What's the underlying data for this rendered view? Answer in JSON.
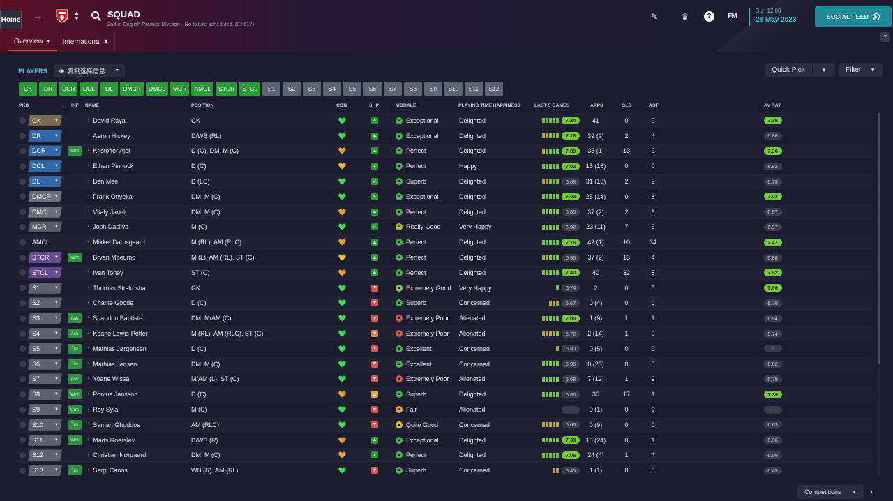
{
  "header": {
    "home_label": "Home",
    "title": "SQUAD",
    "subtitle": "2nd in English Premier Division - No fixture scheduled. (ID:617)",
    "tabs": [
      {
        "label": "Overview",
        "active": true
      },
      {
        "label": "International",
        "active": false
      }
    ],
    "fm_label": "FM",
    "date_time": "Sun 12:00",
    "date_day": "28 May 2023",
    "social_feed_label": "SOCIAL FEED",
    "notification_count": "7"
  },
  "toolbar": {
    "players_label": "PLAYERS",
    "view_select": "复制选择信息",
    "quick_pick_label": "Quick Pick",
    "filter_label": "Filter"
  },
  "position_buttons": [
    {
      "label": "GK",
      "kind": "g"
    },
    {
      "label": "DR",
      "kind": "g"
    },
    {
      "label": "DCR",
      "kind": "g"
    },
    {
      "label": "DCL",
      "kind": "g"
    },
    {
      "label": "DL",
      "kind": "g"
    },
    {
      "label": "DMCR",
      "kind": "g"
    },
    {
      "label": "DMCL",
      "kind": "g"
    },
    {
      "label": "MCR",
      "kind": "g"
    },
    {
      "label": "AMCL",
      "kind": "g"
    },
    {
      "label": "STCR",
      "kind": "g"
    },
    {
      "label": "STCL",
      "kind": "g"
    },
    {
      "label": "S1",
      "kind": "s"
    },
    {
      "label": "S2",
      "kind": "s"
    },
    {
      "label": "S3",
      "kind": "s"
    },
    {
      "label": "S4",
      "kind": "s"
    },
    {
      "label": "S5",
      "kind": "s"
    },
    {
      "label": "S6",
      "kind": "s"
    },
    {
      "label": "S7",
      "kind": "s"
    },
    {
      "label": "S8",
      "kind": "s"
    },
    {
      "label": "S9",
      "kind": "s"
    },
    {
      "label": "S10",
      "kind": "s"
    },
    {
      "label": "S11",
      "kind": "s"
    },
    {
      "label": "S12",
      "kind": "s"
    }
  ],
  "columns": {
    "pkd": "PKD",
    "sort_arrow": "▲",
    "inf": "INF",
    "name": "NAME",
    "position": "POSITION",
    "con": "CON",
    "shp": "SHP",
    "morale": "MORALE",
    "playing_time": "PLAYING TIME HAPPINESS",
    "last5": "LAST 5 GAMES",
    "apps": "APPS",
    "gls": "GLS",
    "ast": "AST",
    "av_rat": "AV RAT"
  },
  "players": [
    {
      "pkd": "GK",
      "pkd_style": "gk",
      "inf": "",
      "name": "David Raya",
      "position": "GK",
      "con": "green",
      "shp": "up",
      "morale": "Exceptional",
      "morale_color": "#4caf50",
      "pt": "Delighted",
      "form": [
        "#7bc043",
        "#7bc043",
        "#7bc043",
        "#7bc043",
        "#7bc043"
      ],
      "last5": "7.24",
      "last5_hi": true,
      "apps": "41",
      "gls": "0",
      "ast": "0",
      "avr": "7.10",
      "avr_hi": true
    },
    {
      "pkd": "DR",
      "pkd_style": "def",
      "inf": "",
      "name": "Aaron Hickey",
      "position": "D/WB (RL)",
      "con": "green",
      "shp": "up",
      "morale": "Exceptional",
      "morale_color": "#4caf50",
      "pt": "Delighted",
      "form": [
        "#d19a3c",
        "#b5a33c",
        "#7bc043",
        "#7bc043",
        "#7bc043"
      ],
      "last5": "7.18",
      "last5_hi": true,
      "apps": "39 (2)",
      "gls": "2",
      "ast": "4",
      "avr": "6.86",
      "avr_hi": false
    },
    {
      "pkd": "DCR",
      "pkd_style": "def",
      "inf": "Wnt",
      "name": "Kristoffer Ajer",
      "position": "D (C), DM, M (C)",
      "con": "orange",
      "shp": "up",
      "morale": "Perfect",
      "morale_color": "#4caf50",
      "pt": "Delighted",
      "form": [
        "#d19a3c",
        "#7bc043",
        "#4fd05e",
        "#7bc043",
        "#4fd05e"
      ],
      "last5": "7.80",
      "last5_hi": true,
      "apps": "33 (1)",
      "gls": "13",
      "ast": "2",
      "avr": "7.36",
      "avr_hi": true
    },
    {
      "pkd": "DCL",
      "pkd_style": "def",
      "inf": "",
      "name": "Ethan Pinnock",
      "position": "D (C)",
      "con": "yellow",
      "shp": "up",
      "morale": "Perfect",
      "morale_color": "#4caf50",
      "pt": "Happy",
      "form": [
        "#7bc043",
        "#7bc043",
        "#7bc043",
        "#7bc043",
        "#7bc043"
      ],
      "last5": "7.02",
      "last5_hi": true,
      "apps": "15 (16)",
      "gls": "0",
      "ast": "0",
      "avr": "6.82",
      "avr_hi": false
    },
    {
      "pkd": "DL",
      "pkd_style": "def",
      "inf": "",
      "name": "Ben Mee",
      "position": "D (LC)",
      "con": "green",
      "shp": "upgreen",
      "morale": "Superb",
      "morale_color": "#4caf50",
      "pt": "Delighted",
      "form": [
        "#b5a33c",
        "#b5a33c",
        "#7bc043",
        "#7bc043",
        "#7bc043"
      ],
      "last5": "6.88",
      "last5_hi": false,
      "apps": "31 (10)",
      "gls": "2",
      "ast": "2",
      "avr": "6.75",
      "avr_hi": false
    },
    {
      "pkd": "DMCR",
      "pkd_style": "dm",
      "inf": "",
      "name": "Frank Onyeka",
      "position": "DM, M (C)",
      "con": "green",
      "shp": "up",
      "morale": "Exceptional",
      "morale_color": "#4caf50",
      "pt": "Delighted",
      "form": [
        "#7bc043",
        "#7bc043",
        "#7bc043",
        "#7bc043",
        "#7bc043"
      ],
      "last5": "7.02",
      "last5_hi": true,
      "apps": "25 (14)",
      "gls": "0",
      "ast": "8",
      "avr": "7.03",
      "avr_hi": true
    },
    {
      "pkd": "DMCL",
      "pkd_style": "dm",
      "inf": "",
      "name": "Vitaly Janelt",
      "position": "DM, M (C)",
      "con": "orange",
      "shp": "up",
      "morale": "Perfect",
      "morale_color": "#4caf50",
      "pt": "Delighted",
      "form": [
        "#b5a33c",
        "#7bc043",
        "#7bc043",
        "#7bc043",
        "#7bc043"
      ],
      "last5": "6.80",
      "last5_hi": false,
      "apps": "37 (2)",
      "gls": "2",
      "ast": "6",
      "avr": "6.97",
      "avr_hi": false
    },
    {
      "pkd": "MCR",
      "pkd_style": "mid",
      "inf": "",
      "name": "Josh Dasilva",
      "position": "M (C)",
      "con": "green",
      "shp": "upgreen",
      "morale": "Really Good",
      "morale_color": "#b5c230",
      "pt": "Very Happy",
      "form": [
        "#7bc043",
        "#7bc043",
        "#7bc043",
        "#7bc043",
        "#7bc043"
      ],
      "last5": "6.92",
      "last5_hi": false,
      "apps": "23 (11)",
      "gls": "7",
      "ast": "3",
      "avr": "6.97",
      "avr_hi": false
    },
    {
      "pkd": "AMCL",
      "pkd_style": "plain",
      "inf": "",
      "name": "Mikkel Damsgaard",
      "position": "M (RL), AM (RLC)",
      "con": "orange",
      "shp": "up",
      "morale": "Perfect",
      "morale_color": "#4caf50",
      "pt": "Delighted",
      "form": [
        "#7bc043",
        "#4fd05e",
        "#4fd05e",
        "#7bc043",
        "#4fd05e"
      ],
      "last5": "7.76",
      "last5_hi": true,
      "apps": "42 (1)",
      "gls": "10",
      "ast": "34",
      "avr": "7.47",
      "avr_hi": true
    },
    {
      "pkd": "STCR",
      "pkd_style": "att",
      "inf": "Wnt",
      "name": "Bryan Mbeumo",
      "position": "M (L), AM (RL), ST (C)",
      "con": "yellow",
      "shp": "up",
      "morale": "Perfect",
      "morale_color": "#4caf50",
      "pt": "Delighted",
      "form": [
        "#7bc043",
        "#b5a33c",
        "#7bc043",
        "#7bc043",
        "#7bc043"
      ],
      "last5": "6.96",
      "last5_hi": false,
      "apps": "37 (2)",
      "gls": "13",
      "ast": "4",
      "avr": "6.88",
      "avr_hi": false
    },
    {
      "pkd": "STCL",
      "pkd_style": "att",
      "inf": "",
      "name": "Ivan Toney",
      "position": "ST (C)",
      "con": "orange",
      "shp": "up",
      "morale": "Perfect",
      "morale_color": "#4caf50",
      "pt": "Delighted",
      "form": [
        "#4fd05e",
        "#b5a33c",
        "#7bc043",
        "#4fd05e",
        "#7bc043"
      ],
      "last5": "7.40",
      "last5_hi": true,
      "apps": "40",
      "gls": "32",
      "ast": "8",
      "avr": "7.52",
      "avr_hi": true
    },
    {
      "pkd": "S1",
      "pkd_style": "sub",
      "inf": "",
      "name": "Thomas Strakosha",
      "position": "GK",
      "con": "green",
      "shp": "down",
      "morale": "Extremely Good",
      "morale_color": "#8bc34a",
      "pt": "Very Happy",
      "form": [
        "#7bc043"
      ],
      "last5": "6.74",
      "last5_hi": false,
      "apps": "2",
      "gls": "0",
      "ast": "0",
      "avr": "7.00",
      "avr_hi": true
    },
    {
      "pkd": "S2",
      "pkd_style": "sub",
      "inf": "",
      "name": "Charlie Goode",
      "position": "D (C)",
      "con": "green",
      "shp": "down",
      "morale": "Superb",
      "morale_color": "#4caf50",
      "pt": "Concerned",
      "form": [
        "#b5a33c",
        "#b5a33c",
        "#b5a33c"
      ],
      "last5": "6.67",
      "last5_hi": false,
      "apps": "0 (4)",
      "gls": "0",
      "ast": "0",
      "avr": "6.70",
      "avr_hi": false
    },
    {
      "pkd": "S3",
      "pkd_style": "sub",
      "inf": "Ask",
      "name": "Shandon Baptiste",
      "position": "DM, M/AM (C)",
      "con": "green",
      "shp": "down",
      "morale": "Extremely Poor",
      "morale_color": "#e05547",
      "pt": "Alienated",
      "form": [
        "#7bc043",
        "#7bc043",
        "#7bc043",
        "#7bc043",
        "#7bc043"
      ],
      "last5": "7.00",
      "last5_hi": true,
      "apps": "1 (9)",
      "gls": "1",
      "ast": "1",
      "avr": "6.94",
      "avr_hi": false
    },
    {
      "pkd": "S4",
      "pkd_style": "sub",
      "inf": "Ask",
      "name": "Keane Lewis-Potter",
      "position": "M (RL), AM (RLC), ST (C)",
      "con": "green",
      "shp": "downorange",
      "morale": "Extremely Poor",
      "morale_color": "#e05547",
      "pt": "Alienated",
      "form": [
        "#b5a33c",
        "#b5a33c",
        "#b5a33c",
        "#b5a33c",
        "#7bc043"
      ],
      "last5": "6.72",
      "last5_hi": false,
      "apps": "2 (14)",
      "gls": "1",
      "ast": "0",
      "avr": "6.74",
      "avr_hi": false
    },
    {
      "pkd": "S5",
      "pkd_style": "sub",
      "inf": "Trn",
      "name": "Mathias Jørgensen",
      "position": "D (C)",
      "con": "green",
      "shp": "down",
      "morale": "Excellent",
      "morale_color": "#4caf50",
      "pt": "Concerned",
      "form": [
        "#b5a33c"
      ],
      "last5": "6.80",
      "last5_hi": false,
      "apps": "0 (5)",
      "gls": "0",
      "ast": "0",
      "avr": "-",
      "avr_hi": false
    },
    {
      "pkd": "S6",
      "pkd_style": "sub",
      "inf": "Trn",
      "name": "Mathias Jensen",
      "position": "DM, M (C)",
      "con": "green",
      "shp": "down",
      "morale": "Excellent",
      "morale_color": "#4caf50",
      "pt": "Concerned",
      "form": [
        "#7bc043",
        "#7bc043",
        "#7bc043",
        "#7bc043",
        "#7bc043"
      ],
      "last5": "6.96",
      "last5_hi": false,
      "apps": "0 (25)",
      "gls": "0",
      "ast": "5",
      "avr": "6.82",
      "avr_hi": false
    },
    {
      "pkd": "S7",
      "pkd_style": "sub",
      "inf": "Ask",
      "name": "Yoane Wissa",
      "position": "M/AM (L), ST (C)",
      "con": "green",
      "shp": "down",
      "morale": "Extremely Poor",
      "morale_color": "#e05547",
      "pt": "Alienated",
      "form": [
        "#7bc043",
        "#7bc043",
        "#7bc043",
        "#7bc043",
        "#7bc043"
      ],
      "last5": "6.68",
      "last5_hi": false,
      "apps": "7 (12)",
      "gls": "1",
      "ast": "2",
      "avr": "6.79",
      "avr_hi": false
    },
    {
      "pkd": "S8",
      "pkd_style": "sub",
      "inf": "Wnt",
      "name": "Pontus Jansson",
      "position": "D (C)",
      "con": "orange",
      "shp": "uporange",
      "morale": "Superb",
      "morale_color": "#4caf50",
      "pt": "Delighted",
      "form": [
        "#7bc043",
        "#7bc043",
        "#7bc043",
        "#7bc043",
        "#7bc043"
      ],
      "last5": "6.86",
      "last5_hi": false,
      "apps": "30",
      "gls": "17",
      "ast": "1",
      "avr": "7.39",
      "avr_hi": true
    },
    {
      "pkd": "S9",
      "pkd_style": "sub",
      "inf": "Unh",
      "name": "Roy Syla",
      "position": "M (C)",
      "con": "green",
      "shp": "down",
      "morale": "Fair",
      "morale_color": "#e8a23a",
      "pt": "Alienated",
      "form": [],
      "last5": "-",
      "last5_hi": false,
      "apps": "0 (1)",
      "gls": "0",
      "ast": "0",
      "avr": "-",
      "avr_hi": false
    },
    {
      "pkd": "S10",
      "pkd_style": "sub",
      "inf": "Trn",
      "name": "Saman Ghoddos",
      "position": "AM (RLC)",
      "con": "green",
      "shp": "down",
      "morale": "Quite Good",
      "morale_color": "#d4c22e",
      "pt": "Concerned",
      "form": [
        "#b5a33c",
        "#b5a33c",
        "#b5a33c",
        "#b5a33c",
        "#b5a33c"
      ],
      "last5": "6.66",
      "last5_hi": false,
      "apps": "0 (9)",
      "gls": "0",
      "ast": "0",
      "avr": "6.63",
      "avr_hi": false
    },
    {
      "pkd": "S11",
      "pkd_style": "sub",
      "inf": "Wnt",
      "name": "Mads Roerslev",
      "position": "D/WB (R)",
      "con": "orange",
      "shp": "up",
      "morale": "Exceptional",
      "morale_color": "#4caf50",
      "pt": "Delighted",
      "form": [
        "#7bc043",
        "#7bc043",
        "#7bc043",
        "#7bc043",
        "#7bc043"
      ],
      "last5": "7.38",
      "last5_hi": true,
      "apps": "15 (24)",
      "gls": "0",
      "ast": "1",
      "avr": "6.86",
      "avr_hi": false
    },
    {
      "pkd": "S12",
      "pkd_style": "sub",
      "inf": "",
      "name": "Christian Nørgaard",
      "position": "DM, M (C)",
      "con": "orange",
      "shp": "up",
      "morale": "Perfect",
      "morale_color": "#4caf50",
      "pt": "Delighted",
      "form": [
        "#7bc043",
        "#7bc043",
        "#7bc043",
        "#7bc043",
        "#7bc043"
      ],
      "last5": "7.06",
      "last5_hi": true,
      "apps": "24 (4)",
      "gls": "1",
      "ast": "4",
      "avr": "6.90",
      "avr_hi": false
    },
    {
      "pkd": "S13",
      "pkd_style": "sub",
      "inf": "Trn",
      "name": "Sergi Canos",
      "position": "WB (R), AM (RL)",
      "con": "green",
      "shp": "down",
      "morale": "Superb",
      "morale_color": "#4caf50",
      "pt": "Concerned",
      "form": [
        "#d19a3c",
        "#b5a33c"
      ],
      "last5": "6.45",
      "last5_hi": false,
      "apps": "1 (1)",
      "gls": "0",
      "ast": "0",
      "avr": "6.45",
      "avr_hi": false
    }
  ],
  "footer": {
    "competitions_label": "Competitions"
  },
  "colors": {
    "accent_cyan": "#35c6d3",
    "green_button": "#2d9a3a",
    "sub_button": "#5d6472",
    "rating_high": "#79c83a",
    "con_green": "#3ddc5a",
    "con_orange": "#e8a23a",
    "con_yellow": "#e8c53a"
  }
}
